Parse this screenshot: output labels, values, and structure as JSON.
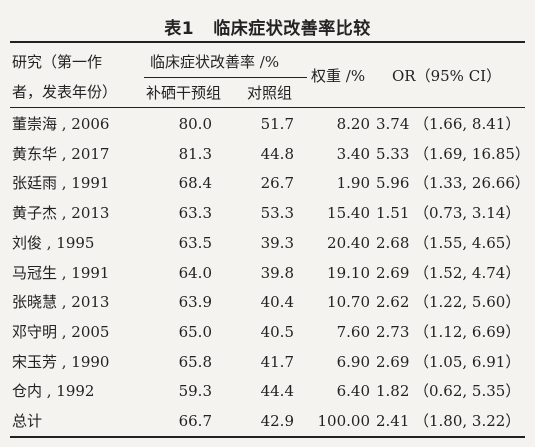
{
  "table": {
    "caption": "表1   临床症状改善率比较",
    "headers": {
      "study_line1": "研究（第一作",
      "study_line2": "者，发表年份）",
      "group": "临床症状改善率 /%",
      "treatment": "补硒干预组",
      "control": "对照组",
      "weight": "权重 /%",
      "or": "OR（95% CI）"
    },
    "rows": [
      {
        "study": "董崇海 , 2006",
        "treatment": "80.0",
        "control": "51.7",
        "weight": "8.20",
        "or": "3.74",
        "ci": "（1.66, 8.41）"
      },
      {
        "study": "黄东华 , 2017",
        "treatment": "81.3",
        "control": "44.8",
        "weight": "3.40",
        "or": "5.33",
        "ci": "（1.69, 16.85）"
      },
      {
        "study": "张廷雨 , 1991",
        "treatment": "68.4",
        "control": "26.7",
        "weight": "1.90",
        "or": "5.96",
        "ci": "（1.33, 26.66）"
      },
      {
        "study": "黄子杰 , 2013",
        "treatment": "63.3",
        "control": "53.3",
        "weight": "15.40",
        "or": "1.51",
        "ci": "（0.73, 3.14）"
      },
      {
        "study": "刘俊 , 1995",
        "treatment": "63.5",
        "control": "39.3",
        "weight": "20.40",
        "or": "2.68",
        "ci": "（1.55, 4.65）"
      },
      {
        "study": "马冠生 , 1991",
        "treatment": "64.0",
        "control": "39.8",
        "weight": "19.10",
        "or": "2.69",
        "ci": "（1.52, 4.74）"
      },
      {
        "study": "张晓慧 , 2013",
        "treatment": "63.9",
        "control": "40.4",
        "weight": "10.70",
        "or": "2.62",
        "ci": "（1.22, 5.60）"
      },
      {
        "study": "邓守明 , 2005",
        "treatment": "65.0",
        "control": "40.5",
        "weight": "7.60",
        "or": "2.73",
        "ci": "（1.12, 6.69）"
      },
      {
        "study": "宋玉芳 , 1990",
        "treatment": "65.8",
        "control": "41.7",
        "weight": "6.90",
        "or": "2.69",
        "ci": "（1.05, 6.91）"
      },
      {
        "study": "仓内 , 1992",
        "treatment": "59.3",
        "control": "44.4",
        "weight": "6.40",
        "or": "1.82",
        "ci": "（0.62, 5.35）"
      },
      {
        "study": "总计",
        "treatment": "66.7",
        "control": "42.9",
        "weight": "100.00",
        "or": "2.41",
        "ci": "（1.80, 3.22）"
      }
    ]
  }
}
